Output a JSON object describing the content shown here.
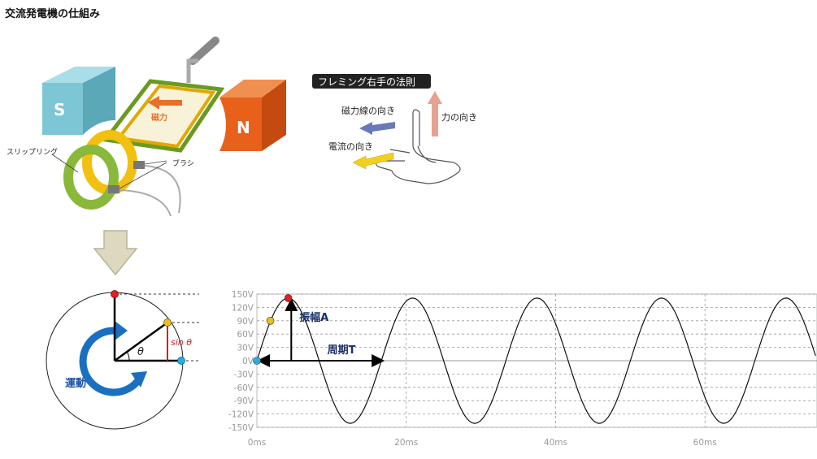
{
  "page": {
    "title": "交流発電機の仕組み"
  },
  "generator": {
    "magnet_s": "S",
    "magnet_n": "N",
    "field_label": "磁力",
    "slip_ring_label": "スリップリング",
    "brush_label": "ブラシ"
  },
  "fleming": {
    "title": "フレミング右手の法則",
    "field_direction": "磁力線の向き",
    "force_direction": "力の向き",
    "current_direction": "電流の向き"
  },
  "circle": {
    "theta_label": "θ",
    "sin_label": "sin θ",
    "motion_label": "運動"
  },
  "chart_data": {
    "type": "line",
    "title": "",
    "xlabel": "",
    "ylabel": "",
    "x_unit": "ms",
    "y_unit": "V",
    "xlim": [
      0,
      75
    ],
    "ylim": [
      -150,
      150
    ],
    "amplitude": 141,
    "period_ms": 16.67,
    "xticks": [
      "0ms",
      "20ms",
      "40ms",
      "60ms"
    ],
    "xtick_values": [
      0,
      20,
      40,
      60
    ],
    "yticks": [
      "150V",
      "120V",
      "90V",
      "60V",
      "30V",
      "0V",
      "-30V",
      "-60V",
      "-90V",
      "-120V",
      "-150V"
    ],
    "ytick_values": [
      150,
      120,
      90,
      60,
      30,
      0,
      -30,
      -60,
      -90,
      -120,
      -150
    ],
    "grid": true,
    "series": [
      {
        "x": [
          0,
          1,
          2,
          3,
          4,
          5,
          6,
          7,
          8,
          9,
          10,
          11,
          12,
          13,
          14,
          15,
          16,
          17,
          18,
          19,
          20,
          21,
          22,
          23,
          24,
          25,
          26,
          27,
          28,
          29,
          30,
          31,
          32,
          33,
          34,
          35,
          36,
          37,
          38,
          39,
          40,
          41,
          42,
          43,
          44,
          45,
          46,
          47,
          48,
          49,
          50,
          51,
          52,
          53,
          54,
          55,
          56,
          57,
          58,
          59,
          60,
          61,
          62,
          63,
          64,
          65,
          66,
          67,
          68,
          69,
          70,
          71,
          72,
          73,
          74,
          75
        ],
        "y": [
          0,
          51.9,
          96.5,
          126.9,
          140.4,
          134.3,
          109.6,
          70.5,
          24.1,
          -27.1,
          -74.4,
          -112.0,
          -134.4,
          -140.0,
          -127.9,
          -97.8,
          -53.6,
          -0.6,
          51.9,
          96.5,
          126.9,
          140.4,
          134.3,
          109.6,
          70.5,
          24.1,
          -27.1,
          -74.4,
          -112.0,
          -134.4,
          -140.0,
          -127.9,
          -97.8,
          -53.6,
          -0.6,
          51.9,
          96.5,
          126.9,
          140.4,
          134.3,
          109.6,
          70.5,
          24.1,
          -27.1,
          -74.4,
          -112.0,
          -134.4,
          -140.0,
          -127.9,
          -97.8,
          -53.6,
          -0.6,
          51.9,
          96.5,
          126.9,
          140.4,
          134.3,
          109.6,
          70.5,
          24.1,
          -27.1,
          -74.4,
          -112.0,
          -134.4,
          -140.0,
          -127.9,
          -97.8,
          -53.6,
          -0.6,
          51.9,
          96.5,
          126.9,
          140.4,
          134.3,
          109.6,
          70.5
        ]
      }
    ],
    "annotations": {
      "amplitude_label": "振幅A",
      "period_label": "周期T"
    },
    "markers": [
      {
        "x": 0,
        "y": 0,
        "color": "#2aaee0"
      },
      {
        "x": 1.8,
        "y": 90,
        "color": "#e8c020"
      },
      {
        "x": 4.2,
        "y": 141,
        "color": "#e02020"
      }
    ]
  }
}
